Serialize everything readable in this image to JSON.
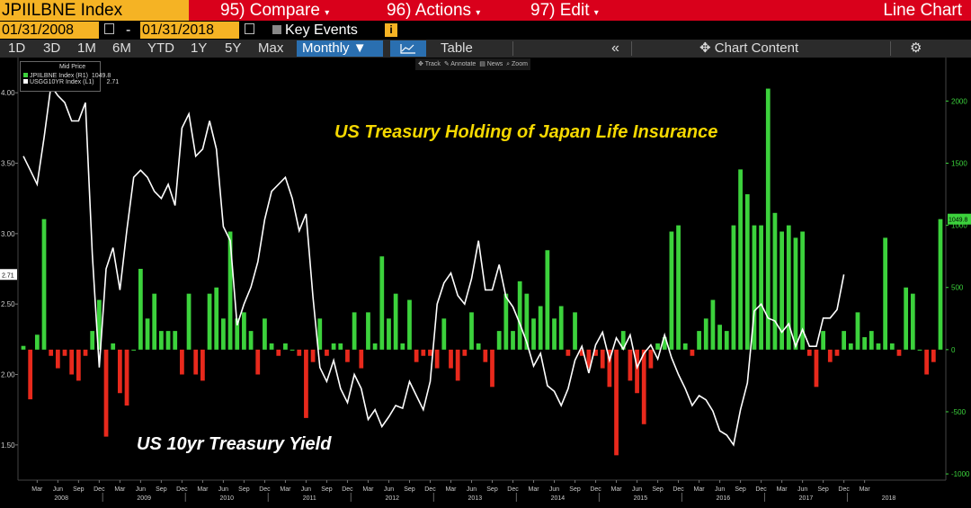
{
  "header": {
    "ticker": "JPIILBNE Index",
    "menu": [
      {
        "num": "95)",
        "label": "Compare"
      },
      {
        "num": "96)",
        "label": "Actions"
      },
      {
        "num": "97)",
        "label": "Edit"
      }
    ],
    "right_label": "Line Chart"
  },
  "dates": {
    "start": "01/31/2008",
    "end": "01/31/2018",
    "key_events_label": "Key Events",
    "info_glyph": "i"
  },
  "toolbar": {
    "ranges": [
      "1D",
      "3D",
      "1M",
      "6M",
      "YTD",
      "1Y",
      "5Y",
      "Max"
    ],
    "period": "Monthly ▼",
    "table_label": "Table",
    "collapse_glyph": "«",
    "content_label": "Chart Content",
    "content_glyph": "✥",
    "settings_glyph": "⚙"
  },
  "chart_tools": [
    "Track",
    "Annotate",
    "News",
    "Zoom"
  ],
  "legend": {
    "title": "Mid Price",
    "entries": [
      {
        "label": "JPIILBNE Index (R1)",
        "value": "1049.8",
        "color": "#3cd23c"
      },
      {
        "label": "USGG10YR Index (L1)",
        "value": "2.71",
        "color": "#ffffff"
      }
    ]
  },
  "annotations": {
    "top": "US Treasury Holding of Japan Life Insurance",
    "bottom": "US 10yr Treasury Yield"
  },
  "chart_data": {
    "type": "bar+line",
    "left_axis": {
      "min": 1.25,
      "max": 4.25,
      "ticks": [
        "1.50",
        "2.00",
        "2.50",
        "3.00",
        "3.50",
        "4.00"
      ],
      "tick_values": [
        1.5,
        2.0,
        2.5,
        3.0,
        3.5,
        4.0
      ]
    },
    "right_axis": {
      "min": -1050,
      "max": 2350,
      "ticks": [
        "-1000",
        "-500",
        "0",
        "500",
        "1000",
        "1500",
        "2000"
      ],
      "tick_values": [
        -1000,
        -500,
        0,
        500,
        1000,
        1500,
        2000
      ]
    },
    "last_labels": {
      "line": "2.71",
      "bar": "1049.8"
    },
    "x_month_labels": [
      "Mar",
      "Jun",
      "Sep",
      "Dec",
      "Mar",
      "Jun",
      "Sep",
      "Dec",
      "Mar",
      "Jun",
      "Sep",
      "Dec",
      "Mar",
      "Jun",
      "Sep",
      "Dec",
      "Mar",
      "Jun",
      "Sep",
      "Dec",
      "Mar",
      "Jun",
      "Sep",
      "Dec",
      "Mar",
      "Jun",
      "Sep",
      "Dec",
      "Mar",
      "Jun",
      "Sep",
      "Dec",
      "Mar",
      "Jun",
      "Sep",
      "Dec",
      "Mar",
      "Jun",
      "Sep",
      "Dec",
      "Mar"
    ],
    "x_year_labels": [
      "2008",
      "2009",
      "2010",
      "2011",
      "2012",
      "2013",
      "2014",
      "2015",
      "2016",
      "2017",
      "2018"
    ],
    "series": [
      {
        "name": "JPIILBNE Index",
        "axis": "right",
        "values": [
          30,
          -400,
          120,
          1050,
          -50,
          -150,
          -50,
          -200,
          -250,
          -50,
          150,
          400,
          -700,
          50,
          -350,
          -450,
          0,
          650,
          250,
          450,
          150,
          150,
          150,
          -200,
          450,
          -200,
          -250,
          450,
          500,
          250,
          950,
          250,
          300,
          150,
          -200,
          250,
          50,
          -50,
          50,
          0,
          -50,
          -550,
          -100,
          250,
          -50,
          50,
          50,
          -100,
          300,
          -150,
          300,
          50,
          750,
          250,
          450,
          50,
          400,
          -100,
          -50,
          -50,
          -150,
          250,
          -150,
          -250,
          -50,
          300,
          50,
          -100,
          -300,
          150,
          450,
          150,
          550,
          450,
          250,
          350,
          800,
          250,
          350,
          -50,
          300,
          -50,
          -150,
          -50,
          -150,
          -300,
          -850,
          150,
          -250,
          -350,
          -600,
          -150,
          50,
          100,
          950,
          1000,
          50,
          -50,
          150,
          250,
          400,
          200,
          150,
          1000,
          1450,
          1250,
          1000,
          1000,
          2100,
          1100,
          950,
          1000,
          900,
          950,
          -50,
          -300,
          150,
          -100,
          -50,
          150,
          50,
          300,
          100,
          150,
          50,
          900,
          50,
          -50,
          500,
          450,
          0,
          -200,
          -100,
          1050
        ]
      },
      {
        "name": "USGG10YR Index",
        "axis": "left",
        "values": [
          3.55,
          3.45,
          3.35,
          3.68,
          4.05,
          3.98,
          3.93,
          3.8,
          3.8,
          3.93,
          2.85,
          2.05,
          2.75,
          2.9,
          2.6,
          3.02,
          3.4,
          3.45,
          3.4,
          3.3,
          3.25,
          3.35,
          3.2,
          3.75,
          3.85,
          3.55,
          3.6,
          3.8,
          3.6,
          3.05,
          2.95,
          2.35,
          2.5,
          2.62,
          2.8,
          3.1,
          3.3,
          3.35,
          3.4,
          3.25,
          3.02,
          3.14,
          2.55,
          2.05,
          1.95,
          2.1,
          1.9,
          1.8,
          2.0,
          1.9,
          1.68,
          1.75,
          1.63,
          1.7,
          1.78,
          1.76,
          1.95,
          1.85,
          1.75,
          1.95,
          2.5,
          2.65,
          2.72,
          2.56,
          2.5,
          2.68,
          2.95,
          2.6,
          2.6,
          2.78,
          2.55,
          2.48,
          2.36,
          2.23,
          2.06,
          2.15,
          1.92,
          1.88,
          1.78,
          1.9,
          2.1,
          2.2,
          2.01,
          2.21,
          2.3,
          2.1,
          2.26,
          2.18,
          2.28,
          2.05,
          2.15,
          2.21,
          2.11,
          2.28,
          2.12,
          2.0,
          1.9,
          1.78,
          1.85,
          1.82,
          1.74,
          1.6,
          1.57,
          1.5,
          1.75,
          1.94,
          2.45,
          2.5,
          2.4,
          2.38,
          2.3,
          2.36,
          2.2,
          2.32,
          2.2,
          2.2,
          2.4,
          2.4,
          2.46,
          2.71
        ]
      }
    ]
  }
}
